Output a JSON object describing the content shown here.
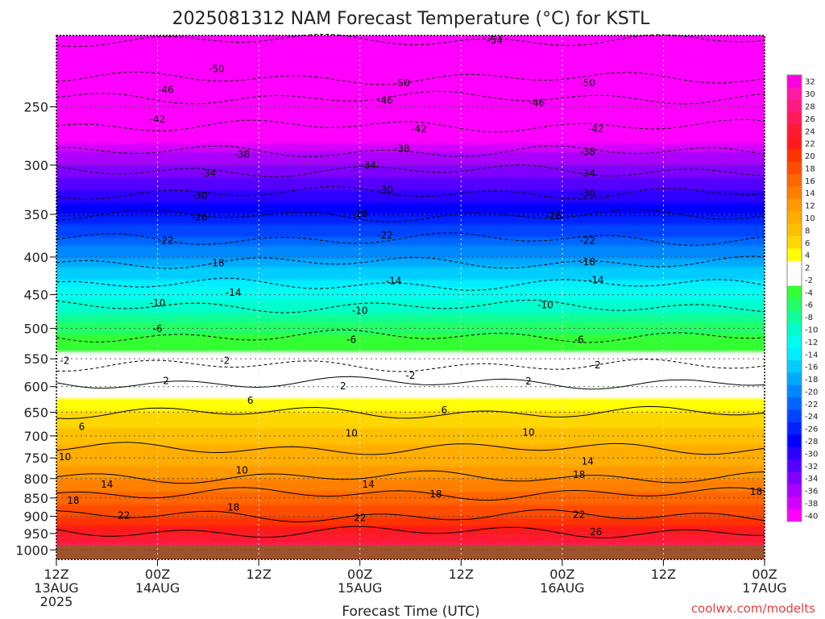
{
  "chart_data": {
    "type": "heatmap",
    "title": "2025081312 NAM Forecast Temperature (°C) for KSTL",
    "xlabel": "Forecast Time (UTC)",
    "ylabel": "",
    "credit": "coolwx.com/modelts",
    "y_scale": "log",
    "y_ticks": [
      250,
      300,
      350,
      400,
      450,
      500,
      550,
      600,
      650,
      700,
      750,
      800,
      850,
      900,
      950,
      1000
    ],
    "y_range": [
      200,
      1030
    ],
    "x_ticks": [
      {
        "hour": 0,
        "line1": "12Z",
        "line2": "13AUG",
        "line3": "2025"
      },
      {
        "hour": 12,
        "line1": "00Z",
        "line2": "14AUG",
        "line3": ""
      },
      {
        "hour": 24,
        "line1": "12Z",
        "line2": "",
        "line3": ""
      },
      {
        "hour": 36,
        "line1": "00Z",
        "line2": "15AUG",
        "line3": ""
      },
      {
        "hour": 48,
        "line1": "12Z",
        "line2": "",
        "line3": ""
      },
      {
        "hour": 60,
        "line1": "00Z",
        "line2": "16AUG",
        "line3": ""
      },
      {
        "hour": 72,
        "line1": "12Z",
        "line2": "",
        "line3": ""
      },
      {
        "hour": 84,
        "line1": "00Z",
        "line2": "17AUG",
        "line3": ""
      }
    ],
    "x_range": [
      0,
      84
    ],
    "grid": true,
    "colorbar": {
      "labels": [
        32,
        30,
        28,
        26,
        24,
        22,
        20,
        18,
        16,
        14,
        12,
        10,
        8,
        6,
        4,
        2,
        -2,
        -4,
        -6,
        -8,
        -10,
        -12,
        -14,
        -16,
        -18,
        -20,
        -22,
        -24,
        -26,
        -28,
        -30,
        -32,
        -34,
        -36,
        -38,
        -40
      ],
      "colors": [
        "#ff00e0",
        "#ff1aa8",
        "#ff1a80",
        "#ff1a5a",
        "#ff1a33",
        "#ff1a1a",
        "#ff3300",
        "#ff4d00",
        "#ff6600",
        "#ff8000",
        "#ff9900",
        "#ffad00",
        "#ffc000",
        "#ffd700",
        "#ffff00",
        "#ffffff",
        "#ffffff",
        "#33ff33",
        "#22ff66",
        "#11ff99",
        "#00ffcc",
        "#00ffee",
        "#00eeff",
        "#00ccff",
        "#00aaff",
        "#0088ff",
        "#0066ff",
        "#0044ff",
        "#0022ff",
        "#0000ff",
        "#2a00ff",
        "#5500ff",
        "#8000ff",
        "#aa00ff",
        "#d400ff",
        "#ff00ff"
      ]
    },
    "profile": {
      "pressure": [
        1000,
        950,
        900,
        850,
        800,
        750,
        700,
        650,
        600,
        550,
        500,
        450,
        400,
        350,
        300,
        250,
        200
      ],
      "temperature_c": [
        27,
        24,
        20,
        17,
        14,
        11,
        9,
        6,
        2,
        -1,
        -5,
        -11,
        -18,
        -26,
        -34,
        -44,
        -54
      ]
    },
    "contours": [
      {
        "label": "-54",
        "hour": 52,
        "p": 203
      },
      {
        "label": "-50",
        "hour": 19,
        "p": 222
      },
      {
        "label": "-50",
        "hour": 41,
        "p": 232
      },
      {
        "label": "-50",
        "hour": 63,
        "p": 232
      },
      {
        "label": "-46",
        "hour": 13,
        "p": 237
      },
      {
        "label": "-46",
        "hour": 39,
        "p": 245
      },
      {
        "label": "-46",
        "hour": 57,
        "p": 247
      },
      {
        "label": "-42",
        "hour": 12,
        "p": 260
      },
      {
        "label": "-42",
        "hour": 43,
        "p": 268
      },
      {
        "label": "-42",
        "hour": 64,
        "p": 268
      },
      {
        "label": "-38",
        "hour": 22,
        "p": 290
      },
      {
        "label": "-38",
        "hour": 41,
        "p": 285
      },
      {
        "label": "-38",
        "hour": 63,
        "p": 288
      },
      {
        "label": "-34",
        "hour": 18,
        "p": 308
      },
      {
        "label": "-34",
        "hour": 37,
        "p": 300
      },
      {
        "label": "-34",
        "hour": 63,
        "p": 308
      },
      {
        "label": "-30",
        "hour": 17,
        "p": 330
      },
      {
        "label": "-30",
        "hour": 39,
        "p": 324
      },
      {
        "label": "-30",
        "hour": 63,
        "p": 328
      },
      {
        "label": "-26",
        "hour": 17,
        "p": 353
      },
      {
        "label": "-26",
        "hour": 36,
        "p": 349
      },
      {
        "label": "-26",
        "hour": 59,
        "p": 352
      },
      {
        "label": "-22",
        "hour": 13,
        "p": 380
      },
      {
        "label": "-22",
        "hour": 39,
        "p": 374
      },
      {
        "label": "-22",
        "hour": 63,
        "p": 380
      },
      {
        "label": "-18",
        "hour": 19,
        "p": 408
      },
      {
        "label": "-18",
        "hour": 63,
        "p": 406
      },
      {
        "label": "-14",
        "hour": 21,
        "p": 447
      },
      {
        "label": "-14",
        "hour": 40,
        "p": 431
      },
      {
        "label": "-14",
        "hour": 64,
        "p": 430
      },
      {
        "label": "-10",
        "hour": 12,
        "p": 462
      },
      {
        "label": "-10",
        "hour": 36,
        "p": 473
      },
      {
        "label": "-10",
        "hour": 58,
        "p": 465
      },
      {
        "label": "-6",
        "hour": 12,
        "p": 501
      },
      {
        "label": "-6",
        "hour": 35,
        "p": 518
      },
      {
        "label": "-6",
        "hour": 62,
        "p": 518
      },
      {
        "label": "-2",
        "hour": 1,
        "p": 553
      },
      {
        "label": "-2",
        "hour": 20,
        "p": 553
      },
      {
        "label": "-2",
        "hour": 42,
        "p": 580
      },
      {
        "label": "-2",
        "hour": 64,
        "p": 561
      },
      {
        "label": "2",
        "hour": 13,
        "p": 589
      },
      {
        "label": "2",
        "hour": 34,
        "p": 599
      },
      {
        "label": "2",
        "hour": 56,
        "p": 590
      },
      {
        "label": "6",
        "hour": 23,
        "p": 627
      },
      {
        "label": "6",
        "hour": 46,
        "p": 646
      },
      {
        "label": "6",
        "hour": 3,
        "p": 680
      },
      {
        "label": "10",
        "hour": 35,
        "p": 694
      },
      {
        "label": "10",
        "hour": 56,
        "p": 692
      },
      {
        "label": "10",
        "hour": 1,
        "p": 748
      },
      {
        "label": "10",
        "hour": 22,
        "p": 780
      },
      {
        "label": "14",
        "hour": 6,
        "p": 815
      },
      {
        "label": "14",
        "hour": 37,
        "p": 815
      },
      {
        "label": "14",
        "hour": 63,
        "p": 758
      },
      {
        "label": "18",
        "hour": 62,
        "p": 790
      },
      {
        "label": "18",
        "hour": 83,
        "p": 833
      },
      {
        "label": "18",
        "hour": 45,
        "p": 840
      },
      {
        "label": "18",
        "hour": 21,
        "p": 875
      },
      {
        "label": "18",
        "hour": 2,
        "p": 857
      },
      {
        "label": "22",
        "hour": 8,
        "p": 898
      },
      {
        "label": "22",
        "hour": 36,
        "p": 905
      },
      {
        "label": "22",
        "hour": 62,
        "p": 895
      },
      {
        "label": "26",
        "hour": 64,
        "p": 945
      }
    ]
  }
}
